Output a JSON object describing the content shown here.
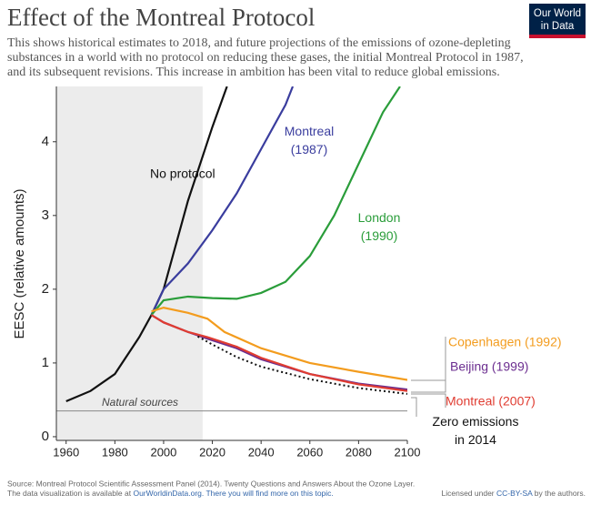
{
  "chart_data": {
    "type": "line",
    "title": "Effect of the Montreal Protocol",
    "subtitle": [
      "This shows historical estimates to 2018, and future projections of the emissions of ozone-depleting",
      "substances in a world with no protocol on reducing these gases, the initial Montreal Protocol in 1987,",
      "and its subsequent revisions. This increase in ambition has been vital to reduce global emissions."
    ],
    "logo": [
      "Our World",
      "in Data"
    ],
    "ylabel": "EESC (relative amounts)",
    "xlim": [
      1956,
      2100
    ],
    "ylim": [
      -0.05,
      4.75
    ],
    "xticks": [
      1960,
      1980,
      2000,
      2020,
      2040,
      2060,
      2080,
      2100
    ],
    "yticks": [
      0,
      1,
      2,
      3,
      4
    ],
    "shaded_region": [
      1956,
      2016
    ],
    "natural_sources": {
      "label": "Natural sources",
      "value": 0.35
    },
    "series": [
      {
        "name": "No protocol",
        "color": "#111111",
        "x": [
          1960,
          1970,
          1980,
          1990,
          1995,
          2000,
          2010,
          2020,
          2026
        ],
        "values": [
          0.48,
          0.62,
          0.85,
          1.35,
          1.65,
          2.0,
          3.2,
          4.2,
          4.75
        ]
      },
      {
        "name": "Montreal (1987)",
        "color": "#3a3d9e",
        "x": [
          1995,
          2000,
          2010,
          2020,
          2030,
          2040,
          2050,
          2053
        ],
        "values": [
          1.65,
          2.0,
          2.35,
          2.8,
          3.3,
          3.9,
          4.5,
          4.75
        ]
      },
      {
        "name": "London (1990)",
        "color": "#2a9d3a",
        "x": [
          1995,
          2000,
          2010,
          2020,
          2030,
          2040,
          2050,
          2060,
          2070,
          2080,
          2090,
          2097
        ],
        "values": [
          1.65,
          1.85,
          1.9,
          1.88,
          1.87,
          1.95,
          2.1,
          2.45,
          3.0,
          3.7,
          4.4,
          4.75
        ]
      },
      {
        "name": "Copenhagen (1992)",
        "color": "#f39c1e",
        "x": [
          1995,
          2000,
          2010,
          2018,
          2025,
          2040,
          2060,
          2080,
          2100
        ],
        "values": [
          1.7,
          1.75,
          1.68,
          1.6,
          1.42,
          1.2,
          1.0,
          0.88,
          0.77
        ]
      },
      {
        "name": "Beijing (1999)",
        "color": "#6b2d8f",
        "x": [
          1995,
          2000,
          2010,
          2018,
          2030,
          2040,
          2060,
          2080,
          2100
        ],
        "values": [
          1.65,
          1.55,
          1.42,
          1.33,
          1.2,
          1.05,
          0.85,
          0.72,
          0.64
        ]
      },
      {
        "name": "Montreal (2007)",
        "color": "#e03c31",
        "x": [
          1995,
          2000,
          2010,
          2018,
          2030,
          2040,
          2060,
          2080,
          2100
        ],
        "values": [
          1.65,
          1.55,
          1.42,
          1.35,
          1.22,
          1.07,
          0.85,
          0.71,
          0.62
        ]
      },
      {
        "name": "Zero emissions in 2014",
        "color": "#111111",
        "dashed": true,
        "x": [
          2014,
          2020,
          2030,
          2040,
          2060,
          2080,
          2100
        ],
        "values": [
          1.36,
          1.25,
          1.08,
          0.95,
          0.78,
          0.66,
          0.58
        ]
      }
    ],
    "source": "Source: Montreal Protocol Scientific Assessment Panel (2014). Twenty Questions and Answers About the Ozone Layer.",
    "footer": [
      "The data visualization is available at",
      "OurWorldinData.org. There you will find more on this topic."
    ],
    "license": [
      "Licensed under",
      "CC-BY-SA",
      "by the authors."
    ]
  }
}
